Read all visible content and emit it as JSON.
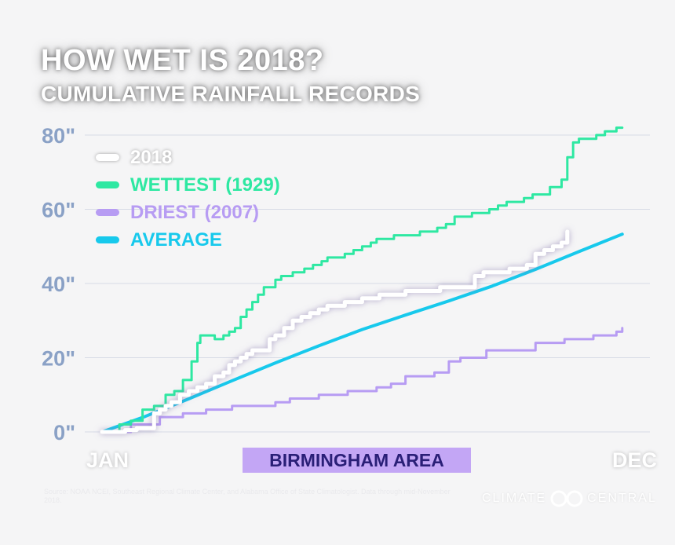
{
  "header": {
    "title": "HOW WET IS 2018?",
    "subtitle": "CUMULATIVE RAINFALL RECORDS"
  },
  "legend": [
    {
      "label": "2018",
      "color": "#ffffff"
    },
    {
      "label": "WETTEST (1929)",
      "color": "#2ee8a2"
    },
    {
      "label": "DRIEST (2007)",
      "color": "#b79cf3"
    },
    {
      "label": "AVERAGE",
      "color": "#17c9ec"
    }
  ],
  "region_label": "BIRMINGHAM AREA",
  "footer": {
    "brand_left": "CLIMATE",
    "brand_right": "CENTRAL",
    "note": "Source: NOAA NCEI, Southeast Regional Climate Center, and Alabama Office of State Climatologist. Data through mid-November 2018."
  },
  "chart_data": {
    "type": "line",
    "title": "HOW WET IS 2018?",
    "subtitle": "CUMULATIVE RAINFALL RECORDS",
    "xlabel": "",
    "ylabel": "",
    "x_tick_labels": [
      "JAN",
      "DEC"
    ],
    "y_ticks": [
      0,
      20,
      40,
      60,
      80
    ],
    "y_tick_labels": [
      "0\"",
      "20\"",
      "40\"",
      "60\"",
      "80\""
    ],
    "xlim": [
      0,
      365
    ],
    "ylim": [
      0,
      80
    ],
    "grid": true,
    "legend_position": "top-left",
    "series": [
      {
        "name": "WETTEST (1929)",
        "color": "#2ee8a2",
        "x": [
          0,
          12,
          20,
          28,
          36,
          44,
          50,
          56,
          62,
          66,
          68,
          72,
          78,
          84,
          88,
          92,
          96,
          100,
          104,
          108,
          112,
          116,
          120,
          124,
          128,
          132,
          136,
          140,
          146,
          152,
          156,
          162,
          168,
          174,
          180,
          186,
          190,
          196,
          202,
          208,
          214,
          220,
          226,
          232,
          238,
          244,
          250,
          256,
          262,
          268,
          274,
          280,
          286,
          292,
          298,
          304,
          310,
          314,
          318,
          322,
          326,
          330,
          336,
          342,
          348,
          356,
          360
        ],
        "y": [
          0,
          2,
          3,
          6,
          7,
          10,
          11,
          14,
          19,
          24,
          26,
          26,
          25,
          26,
          27,
          28,
          31,
          33,
          35,
          37,
          39,
          39,
          41,
          42,
          42,
          43,
          43,
          44,
          45,
          46,
          47,
          47,
          48,
          49,
          50,
          51,
          52,
          52,
          53,
          53,
          53,
          54,
          54,
          55,
          56,
          58,
          58,
          59,
          59,
          60,
          61,
          62,
          62,
          63,
          64,
          64,
          66,
          66,
          68,
          74,
          78,
          79,
          79,
          80,
          81,
          82,
          82
        ]
      },
      {
        "name": "2018",
        "color": "#ffffff",
        "x": [
          0,
          8,
          16,
          24,
          30,
          36,
          40,
          44,
          48,
          54,
          60,
          66,
          72,
          78,
          84,
          88,
          92,
          96,
          100,
          104,
          108,
          112,
          116,
          120,
          126,
          132,
          138,
          144,
          150,
          156,
          162,
          168,
          174,
          180,
          186,
          192,
          198,
          204,
          210,
          216,
          222,
          228,
          234,
          240,
          246,
          252,
          258,
          264,
          270,
          276,
          282,
          288,
          294,
          300,
          306,
          312,
          318,
          322
        ],
        "y": [
          0,
          0,
          0.5,
          1,
          1,
          5,
          6,
          7,
          8,
          10,
          11,
          12,
          13,
          15,
          16,
          18,
          19,
          20,
          21,
          22,
          22,
          22,
          25,
          26,
          28,
          30,
          31,
          32,
          33,
          34,
          34,
          35,
          35,
          36,
          36,
          37,
          37,
          37,
          38,
          38,
          38,
          38,
          39,
          39,
          39,
          39,
          42,
          43,
          43,
          43,
          44,
          44,
          45,
          48,
          49,
          50,
          51,
          54
        ]
      },
      {
        "name": "DRIEST (2007)",
        "color": "#b79cf3",
        "x": [
          0,
          20,
          40,
          56,
          72,
          90,
          110,
          120,
          130,
          150,
          170,
          190,
          200,
          210,
          230,
          240,
          248,
          258,
          266,
          280,
          300,
          320,
          340,
          356,
          360
        ],
        "y": [
          0,
          2,
          4,
          5,
          6,
          7,
          7,
          8,
          9,
          10,
          11,
          12,
          13,
          15,
          16,
          19,
          20,
          20,
          22,
          22,
          24,
          25,
          26,
          27,
          28
        ]
      },
      {
        "name": "AVERAGE",
        "color": "#17c9ec",
        "x": [
          0,
          30,
          60,
          90,
          120,
          150,
          180,
          210,
          240,
          270,
          300,
          330,
          360
        ],
        "y": [
          0,
          4.2,
          8.9,
          13.8,
          18.6,
          23.2,
          27.6,
          31.5,
          35.3,
          39.3,
          43.8,
          48.6,
          53.3
        ]
      }
    ]
  }
}
